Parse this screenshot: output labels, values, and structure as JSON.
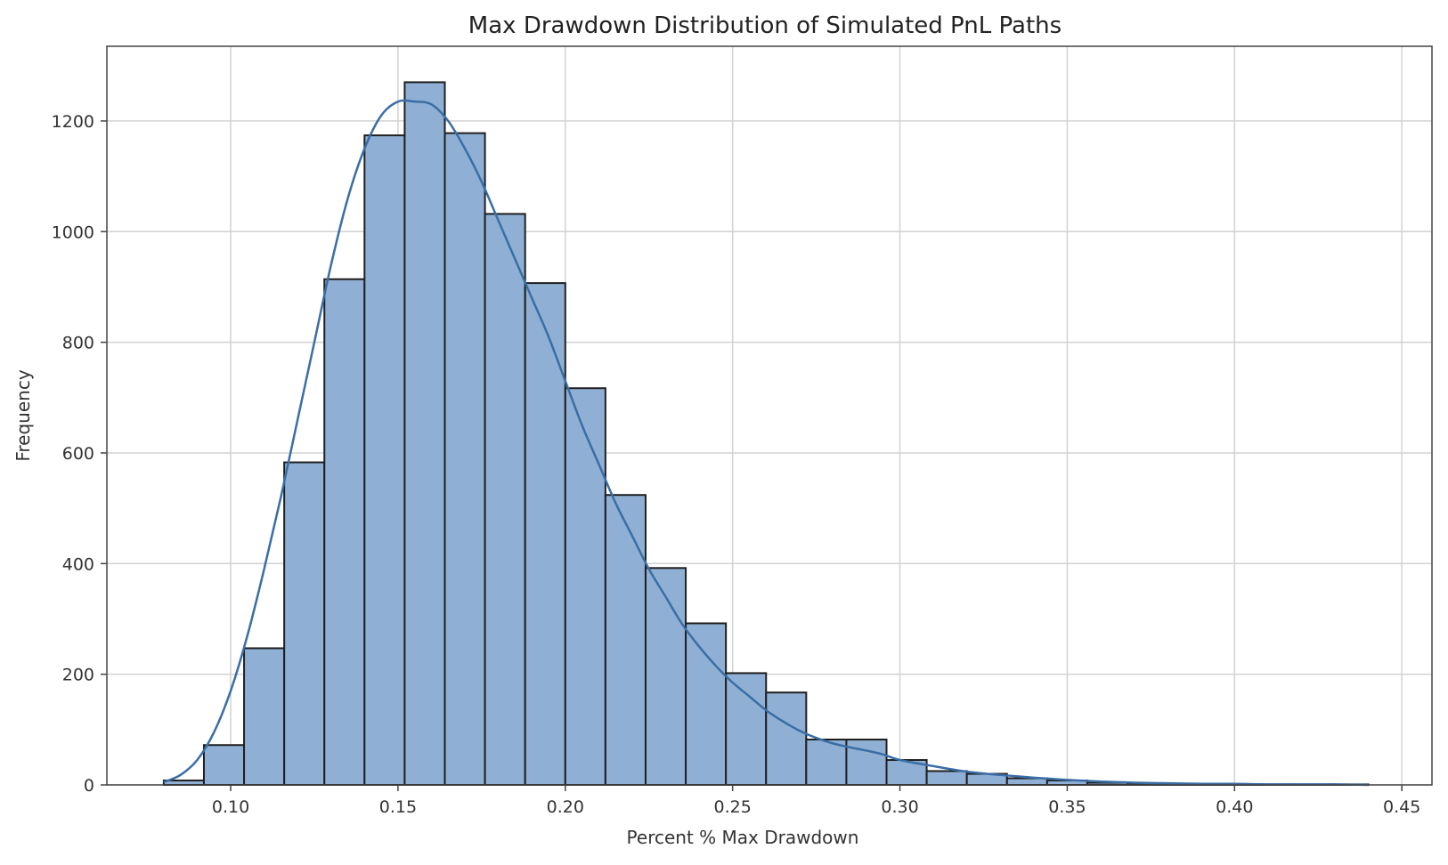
{
  "chart_data": {
    "type": "bar",
    "title": "Max Drawdown Distribution of Simulated PnL Paths",
    "xlabel": "Percent % Max Drawdown",
    "ylabel": "Frequency",
    "xlim": [
      0.063,
      0.459
    ],
    "ylim": [
      0,
      1335
    ],
    "grid": true,
    "x_ticks": [
      0.1,
      0.15,
      0.2,
      0.25,
      0.3,
      0.35,
      0.4,
      0.45
    ],
    "x_tick_labels": [
      "0.10",
      "0.15",
      "0.20",
      "0.25",
      "0.30",
      "0.35",
      "0.40",
      "0.45"
    ],
    "y_ticks": [
      0,
      200,
      400,
      600,
      800,
      1000,
      1200
    ],
    "y_tick_labels": [
      "0",
      "200",
      "400",
      "600",
      "800",
      "1000",
      "1200"
    ],
    "bin_edges": [
      0.08,
      0.092,
      0.104,
      0.116,
      0.128,
      0.14,
      0.152,
      0.164,
      0.176,
      0.188,
      0.2,
      0.212,
      0.224,
      0.236,
      0.248,
      0.26,
      0.272,
      0.284,
      0.296,
      0.308,
      0.32,
      0.332,
      0.344,
      0.356,
      0.368,
      0.38,
      0.392,
      0.404,
      0.416,
      0.428,
      0.44
    ],
    "values": [
      8,
      72,
      247,
      583,
      914,
      1174,
      1270,
      1178,
      1032,
      907,
      717,
      524,
      392,
      292,
      202,
      167,
      82,
      82,
      45,
      25,
      20,
      12,
      8,
      4,
      2,
      2,
      1,
      1,
      1,
      1
    ],
    "kde": {
      "x": [
        0.08,
        0.085,
        0.09,
        0.095,
        0.1,
        0.105,
        0.11,
        0.115,
        0.12,
        0.125,
        0.13,
        0.135,
        0.14,
        0.145,
        0.15,
        0.155,
        0.16,
        0.165,
        0.17,
        0.175,
        0.18,
        0.185,
        0.19,
        0.195,
        0.2,
        0.205,
        0.21,
        0.215,
        0.22,
        0.225,
        0.23,
        0.235,
        0.24,
        0.245,
        0.25,
        0.255,
        0.26,
        0.265,
        0.27,
        0.275,
        0.28,
        0.285,
        0.29,
        0.295,
        0.3,
        0.31,
        0.32,
        0.33,
        0.34,
        0.35,
        0.36,
        0.37,
        0.38,
        0.39,
        0.4,
        0.41,
        0.42,
        0.43,
        0.44
      ],
      "y": [
        5,
        18,
        45,
        95,
        170,
        270,
        390,
        520,
        660,
        800,
        940,
        1060,
        1150,
        1210,
        1235,
        1235,
        1230,
        1200,
        1150,
        1090,
        1020,
        950,
        880,
        810,
        730,
        650,
        580,
        510,
        450,
        390,
        340,
        290,
        250,
        215,
        185,
        160,
        135,
        115,
        98,
        85,
        75,
        68,
        62,
        55,
        45,
        34,
        24,
        18,
        13,
        9,
        6,
        4,
        3,
        2,
        2,
        1,
        1,
        1,
        0
      ]
    },
    "bar_color": "#8fb0d4",
    "line_color": "#3a6ea5"
  }
}
